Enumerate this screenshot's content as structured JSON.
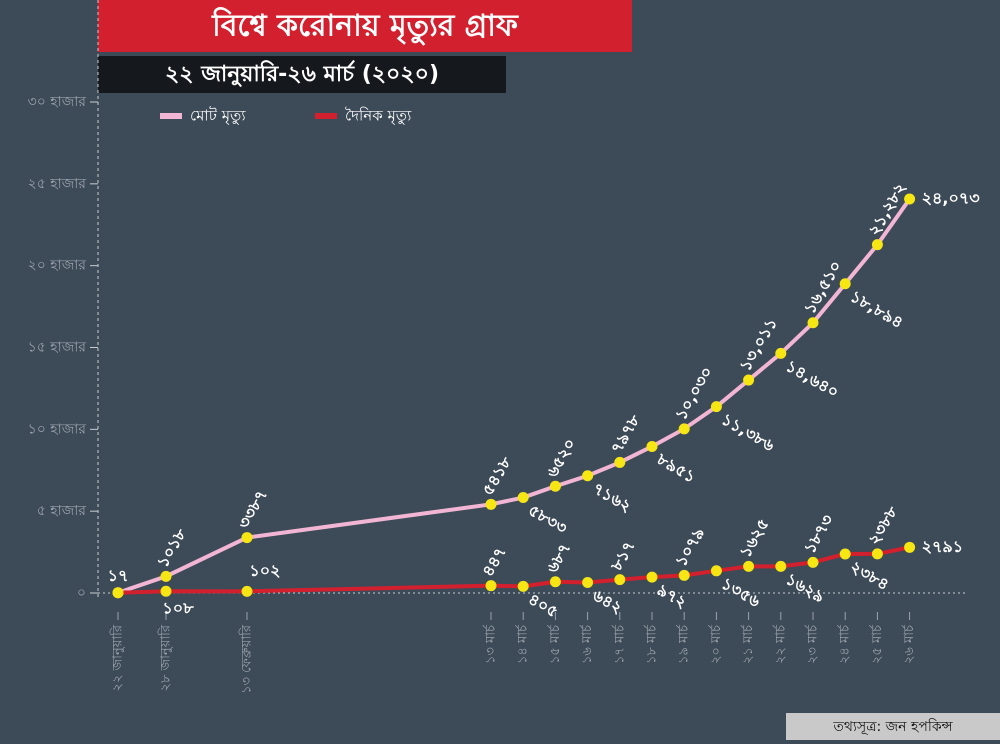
{
  "chart_data": {
    "type": "line",
    "title": "বিশ্বে করোনায় মৃত্যুর গ্রাফ",
    "subtitle": "২২ জানুয়ারি-২৬ মার্চ (২০২০)",
    "source": "তথ্যসূত্র: জন হপকিন্স",
    "categories": [
      "২২ জানুয়ারি",
      "২৮ জানুয়ারি",
      "১৩ ফেব্রুয়ারি",
      "১৩ মার্চ",
      "১৪ মার্চ",
      "১৫ মার্চ",
      "১৬ মার্চ",
      "১৭ মার্চ",
      "১৮ মার্চ",
      "১৯ মার্চ",
      "২০ মার্চ",
      "২১ মার্চ",
      "২২ মার্চ",
      "২৩ মার্চ",
      "২৪ মার্চ",
      "২৫ মার্চ",
      "২৬ মার্চ"
    ],
    "series": [
      {
        "name": "মোট মৃত্যু",
        "color": "#f2b6d4",
        "values": [
          17,
          1018,
          3387,
          5418,
          5833,
          6520,
          7162,
          7978,
          8951,
          10030,
          11386,
          13011,
          14640,
          16510,
          18894,
          21282,
          24073
        ],
        "value_labels": [
          "১৭",
          "১০১৮",
          "৩৩৮৭",
          "৫৪১৮",
          "৫৮৩৩",
          "৬৫২০",
          "৭১৬২",
          "৭৯৭৮",
          "৮৯৫১",
          "১০,০৩০",
          "১১,৩৮৬",
          "১৩,০১১",
          "১৪,৬৪০",
          "১৬,৫১০",
          "১৮,৮৯৪",
          "২১,২৮২",
          "২৪,০৭৩"
        ]
      },
      {
        "name": "দৈনিক মৃত্যু",
        "color": "#d3202f",
        "values": [
          17,
          108,
          102,
          447,
          405,
          687,
          642,
          817,
          972,
          1079,
          1356,
          1625,
          1629,
          1873,
          2384,
          2388,
          2791
        ],
        "value_labels": [
          null,
          "১০৮",
          "১০২",
          "৪৪৭",
          "৪০৫",
          "৬৮৭",
          "৬৪২",
          "৮১৭",
          "৯৭২",
          "১০৭৯",
          "১৩৫৬",
          "১৬২৫",
          "১৬২৯",
          "১৮৭৩",
          "২৩৮৪",
          "২৩৮৮",
          "২৭৯১"
        ]
      }
    ],
    "marker_color": "#f5e614",
    "ylim": [
      0,
      30000
    ],
    "yticks": [
      {
        "value": 0,
        "label": "০"
      },
      {
        "value": 5000,
        "label": "৫ হাজার"
      },
      {
        "value": 10000,
        "label": "১০ হাজার"
      },
      {
        "value": 15000,
        "label": "১৫ হাজার"
      },
      {
        "value": 20000,
        "label": "২০ হাজার"
      },
      {
        "value": 25000,
        "label": "২৫ হাজার"
      },
      {
        "value": 30000,
        "label": "৩০ হাজার"
      }
    ]
  }
}
